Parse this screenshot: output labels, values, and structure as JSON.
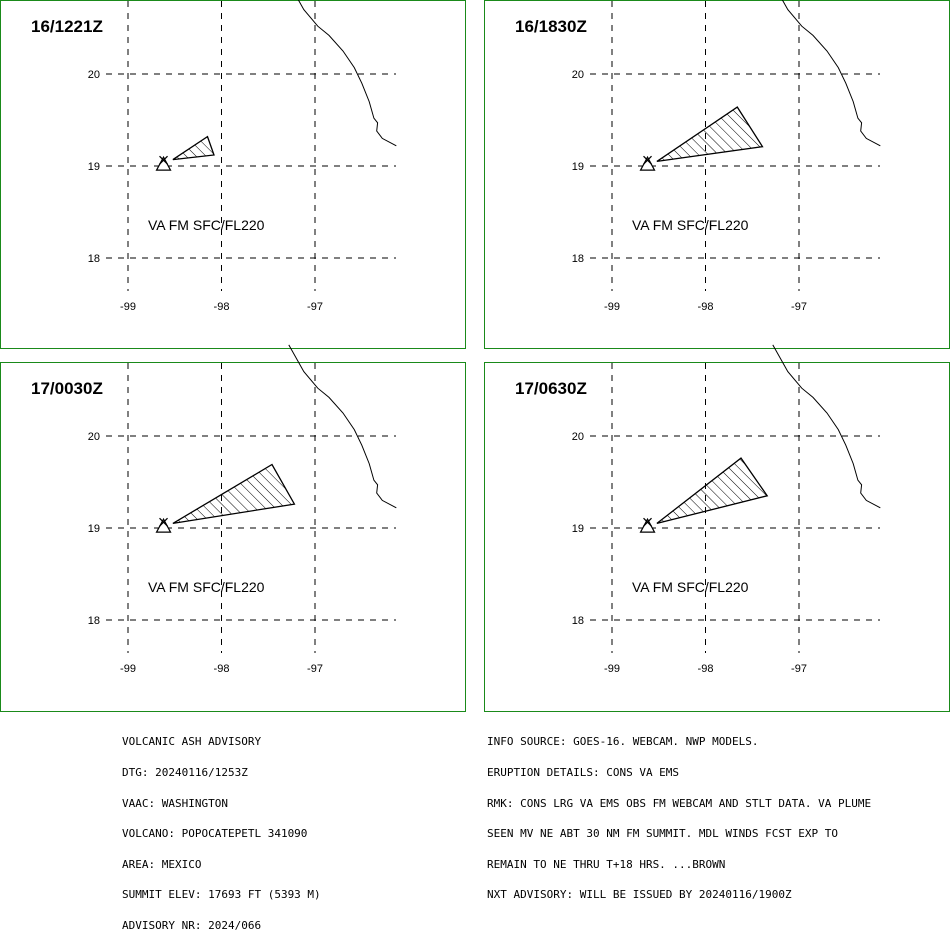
{
  "panels": [
    {
      "time": "16/1221Z",
      "label": "VA FM SFC/FL220",
      "plume": [
        [
          -98.52,
          19.07
        ],
        [
          -98.15,
          19.32
        ],
        [
          -98.08,
          19.12
        ]
      ]
    },
    {
      "time": "16/1830Z",
      "label": "VA FM SFC/FL220",
      "plume": [
        [
          -98.52,
          19.05
        ],
        [
          -97.66,
          19.64
        ],
        [
          -97.39,
          19.21
        ]
      ]
    },
    {
      "time": "17/0030Z",
      "label": "VA FM SFC/FL220",
      "plume": [
        [
          -98.52,
          19.05
        ],
        [
          -97.46,
          19.69
        ],
        [
          -97.22,
          19.26
        ]
      ]
    },
    {
      "time": "17/0630Z",
      "label": "VA FM SFC/FL220",
      "plume": [
        [
          -98.52,
          19.05
        ],
        [
          -97.62,
          19.76
        ],
        [
          -97.34,
          19.35
        ]
      ]
    }
  ],
  "map": {
    "lat_ticks": [
      "20",
      "19",
      "18"
    ],
    "lon_ticks": [
      "-99",
      "-98",
      "-97"
    ],
    "lat_values": [
      20,
      19,
      18
    ],
    "lon_values": [
      -99,
      -98,
      -97
    ],
    "volcano": {
      "lon": -98.62,
      "lat": 19.02,
      "name": "POPOCATEPETL"
    },
    "coastline": [
      [
        -97.28,
        20.99
      ],
      [
        -97.12,
        20.7
      ],
      [
        -96.97,
        20.52
      ],
      [
        -96.85,
        20.42
      ],
      [
        -96.7,
        20.25
      ],
      [
        -96.58,
        20.07
      ],
      [
        -96.5,
        19.9
      ],
      [
        -96.42,
        19.7
      ],
      [
        -96.37,
        19.52
      ],
      [
        -96.33,
        19.47
      ],
      [
        -96.34,
        19.38
      ],
      [
        -96.28,
        19.3
      ],
      [
        -96.13,
        19.22
      ]
    ],
    "colors": {
      "frame": "#1a8a1a",
      "lines": "#000000"
    }
  },
  "advisory_left": [
    "VOLCANIC ASH ADVISORY",
    "DTG: 20240116/1253Z",
    "VAAC: WASHINGTON",
    "VOLCANO: POPOCATEPETL 341090",
    "AREA: MEXICO",
    "SUMMIT ELEV: 17693 FT (5393 M)",
    "ADVISORY NR: 2024/066"
  ],
  "advisory_right": [
    "INFO SOURCE: GOES-16. WEBCAM. NWP MODELS.",
    "ERUPTION DETAILS: CONS VA EMS",
    "RMK: CONS LRG VA EMS OBS FM WEBCAM AND STLT DATA. VA PLUME",
    "SEEN MV NE ABT 30 NM FM SUMMIT. MDL WINDS FCST EXP TO",
    "REMAIN TO NE THRU T+18 HRS. ...BROWN",
    "NXT ADVISORY: WILL BE ISSUED BY 20240116/1900Z"
  ]
}
